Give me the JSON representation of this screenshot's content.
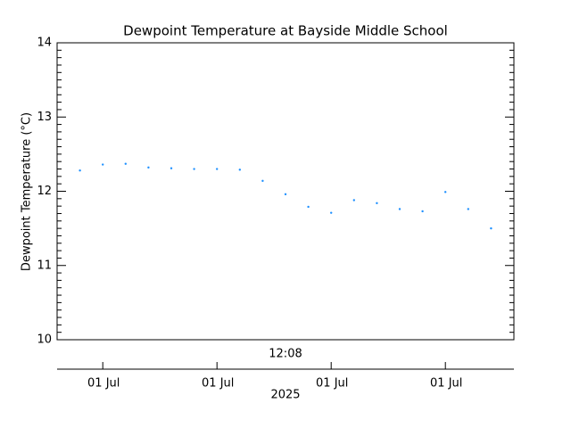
{
  "chart_data": {
    "type": "scatter",
    "title": "Dewpoint Temperature at Bayside Middle School",
    "ylabel": "Dewpoint Temperature (°C)",
    "time_label": "12:08",
    "xlabel": "2025",
    "color": "#1e90ff",
    "x": [
      1,
      2,
      3,
      4,
      5,
      6,
      7,
      8,
      9,
      10,
      11,
      12,
      13,
      14,
      15,
      16,
      17,
      18,
      19
    ],
    "values": [
      12.28,
      12.36,
      12.37,
      12.32,
      12.31,
      12.3,
      12.3,
      12.29,
      12.14,
      11.96,
      11.79,
      11.71,
      11.88,
      11.84,
      11.76,
      11.73,
      11.99,
      11.76,
      11.5
    ],
    "xlim": [
      0,
      20
    ],
    "xticks": [
      {
        "value": 2,
        "label": "01 Jul"
      },
      {
        "value": 7,
        "label": "01 Jul"
      },
      {
        "value": 12,
        "label": "01 Jul"
      },
      {
        "value": 17,
        "label": "01 Jul"
      }
    ],
    "ylim": [
      10,
      14
    ],
    "yticks": [
      10,
      11,
      12,
      13,
      14
    ]
  }
}
